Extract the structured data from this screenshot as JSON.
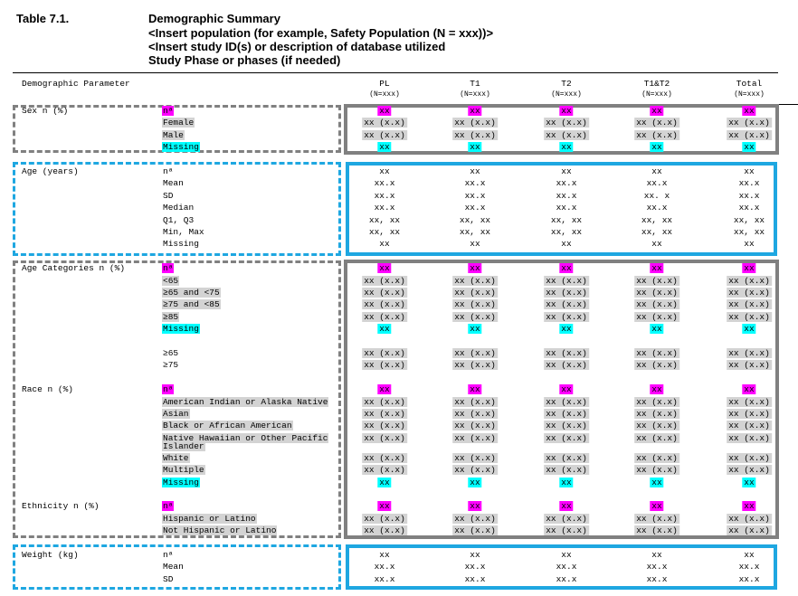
{
  "table_number": "Table 7.1.",
  "title_lines": [
    "Demographic Summary",
    "<Insert population (for example, Safety Population (N = xxx))>",
    "<Insert study ID(s) or description of database utilized",
    "Study Phase or phases (if needed)"
  ],
  "header": {
    "param_label": "Demographic Parameter",
    "columns": [
      {
        "name": "PL",
        "n": "(N=xxx)"
      },
      {
        "name": "T1",
        "n": "(N=xxx)"
      },
      {
        "name": "T2",
        "n": "(N=xxx)"
      },
      {
        "name": "T1&T2",
        "n": "(N=xxx)"
      },
      {
        "name": "Total",
        "n": "(N=xxx)"
      }
    ]
  },
  "colors": {
    "n_highlight": "#ff00ff",
    "category_highlight": "#d3d3d3",
    "missing_highlight": "#00ffff",
    "gray_box": "#808080",
    "blue_box": "#1ea7e1"
  },
  "rows": [
    {
      "param": "Sex n (%)",
      "label": "nᵃ",
      "hl": "m",
      "values": [
        "xx",
        "xx",
        "xx",
        "xx",
        "xx"
      ]
    },
    {
      "label": "Female",
      "hl": "g",
      "values": [
        "xx (x.x)",
        "xx (x.x)",
        "xx (x.x)",
        "xx (x.x)",
        "xx (x.x)"
      ]
    },
    {
      "label": "Male",
      "hl": "g",
      "values": [
        "xx (x.x)",
        "xx (x.x)",
        "xx (x.x)",
        "xx (x.x)",
        "xx (x.x)"
      ]
    },
    {
      "label": "Missing",
      "hl": "c",
      "values": [
        "xx",
        "xx",
        "xx",
        "xx",
        "xx"
      ]
    },
    {
      "blank": true
    },
    {
      "param": "Age (years)",
      "label": "nᵃ",
      "values": [
        "xx",
        "xx",
        "xx",
        "xx",
        "xx"
      ]
    },
    {
      "label": "Mean",
      "values": [
        "xx.x",
        "xx.x",
        "xx.x",
        "xx.x",
        "xx.x"
      ]
    },
    {
      "label": "SD",
      "values": [
        "xx.x",
        "xx.x",
        "xx.x",
        "xx. x",
        "xx.x"
      ]
    },
    {
      "label": "Median",
      "values": [
        "xx.x",
        "xx.x",
        "xx.x",
        "xx.x",
        "xx.x"
      ]
    },
    {
      "label": "Q1, Q3",
      "values": [
        "xx, xx",
        "xx, xx",
        "xx, xx",
        "xx, xx",
        "xx, xx"
      ]
    },
    {
      "label": "Min, Max",
      "values": [
        "xx, xx",
        "xx, xx",
        "xx, xx",
        "xx, xx",
        "xx, xx"
      ]
    },
    {
      "label": "Missing",
      "values": [
        "xx",
        "xx",
        "xx",
        "xx",
        "xx"
      ]
    },
    {
      "blank": true
    },
    {
      "param": "Age Categories n (%)",
      "label": "nᵃ",
      "hl": "m",
      "values": [
        "xx",
        "xx",
        "xx",
        "xx",
        "xx"
      ]
    },
    {
      "label": "<65",
      "hl": "g",
      "values": [
        "xx (x.x)",
        "xx (x.x)",
        "xx (x.x)",
        "xx (x.x)",
        "xx (x.x)"
      ]
    },
    {
      "label": "≥65 and <75",
      "hl": "g",
      "values": [
        "xx (x.x)",
        "xx (x.x)",
        "xx (x.x)",
        "xx (x.x)",
        "xx (x.x)"
      ]
    },
    {
      "label": "≥75 and <85",
      "hl": "g",
      "values": [
        "xx (x.x)",
        "xx (x.x)",
        "xx (x.x)",
        "xx (x.x)",
        "xx (x.x)"
      ]
    },
    {
      "label": "≥85",
      "hl": "g",
      "values": [
        "xx (x.x)",
        "xx (x.x)",
        "xx (x.x)",
        "xx (x.x)",
        "xx (x.x)"
      ]
    },
    {
      "label": "Missing",
      "hl": "c",
      "values": [
        "xx",
        "xx",
        "xx",
        "xx",
        "xx"
      ]
    },
    {
      "blank": true
    },
    {
      "label": "≥65",
      "values": [
        "xx (x.x)",
        "xx (x.x)",
        "xx (x.x)",
        "xx (x.x)",
        "xx (x.x)"
      ],
      "hlv": "g"
    },
    {
      "label": "≥75",
      "values": [
        "xx (x.x)",
        "xx (x.x)",
        "xx (x.x)",
        "xx (x.x)",
        "xx (x.x)"
      ],
      "hlv": "g"
    },
    {
      "blank": true
    },
    {
      "param": "Race n (%)",
      "label": "nᵃ",
      "hl": "m",
      "values": [
        "xx",
        "xx",
        "xx",
        "xx",
        "xx"
      ]
    },
    {
      "label": "American Indian or Alaska Native",
      "hl": "g",
      "values": [
        "xx (x.x)",
        "xx (x.x)",
        "xx (x.x)",
        "xx (x.x)",
        "xx (x.x)"
      ]
    },
    {
      "label": "Asian",
      "hl": "g",
      "values": [
        "xx (x.x)",
        "xx (x.x)",
        "xx (x.x)",
        "xx (x.x)",
        "xx (x.x)"
      ]
    },
    {
      "label": "Black or African American",
      "hl": "g",
      "values": [
        "xx (x.x)",
        "xx (x.x)",
        "xx (x.x)",
        "xx (x.x)",
        "xx (x.x)"
      ]
    },
    {
      "label": "Native Hawaiian or Other Pacific",
      "label2": "Islander",
      "hl": "g",
      "values": [
        "xx (x.x)",
        "xx (x.x)",
        "xx (x.x)",
        "xx (x.x)",
        "xx (x.x)"
      ]
    },
    {
      "label": "White",
      "hl": "g",
      "values": [
        "xx (x.x)",
        "xx (x.x)",
        "xx (x.x)",
        "xx (x.x)",
        "xx (x.x)"
      ]
    },
    {
      "label": "Multiple",
      "hl": "g",
      "values": [
        "xx (x.x)",
        "xx (x.x)",
        "xx (x.x)",
        "xx (x.x)",
        "xx (x.x)"
      ]
    },
    {
      "label": "Missing",
      "hl": "c",
      "values": [
        "xx",
        "xx",
        "xx",
        "xx",
        "xx"
      ]
    },
    {
      "blank": true
    },
    {
      "param": "Ethnicity n (%)",
      "label": "nᵃ",
      "hl": "m",
      "values": [
        "xx",
        "xx",
        "xx",
        "xx",
        "xx"
      ]
    },
    {
      "label": "Hispanic or Latino",
      "hl": "g",
      "values": [
        "xx (x.x)",
        "xx (x.x)",
        "xx (x.x)",
        "xx (x.x)",
        "xx (x.x)"
      ]
    },
    {
      "label": "Not Hispanic or Latino",
      "hl": "g",
      "values": [
        "xx (x.x)",
        "xx (x.x)",
        "xx (x.x)",
        "xx (x.x)",
        "xx (x.x)"
      ]
    },
    {
      "blank": true
    },
    {
      "param": "Weight (kg)",
      "label": "nᵃ",
      "values": [
        "xx",
        "xx",
        "xx",
        "xx",
        "xx"
      ]
    },
    {
      "label": "Mean",
      "values": [
        "xx.x",
        "xx.x",
        "xx.x",
        "xx.x",
        "xx.x"
      ]
    },
    {
      "label": "SD",
      "values": [
        "xx.x",
        "xx.x",
        "xx.x",
        "xx.x",
        "xx.x"
      ]
    }
  ]
}
